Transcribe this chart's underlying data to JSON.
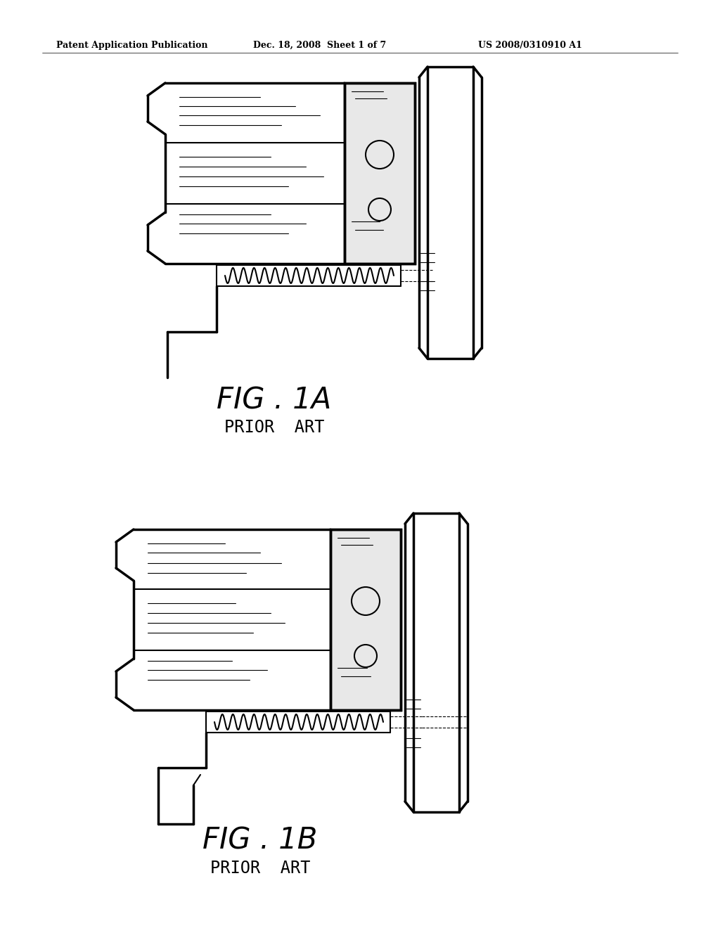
{
  "bg_color": "#ffffff",
  "line_color": "#000000",
  "header_left": "Patent Application Publication",
  "header_mid": "Dec. 18, 2008  Sheet 1 of 7",
  "header_right": "US 2008/0310910 A1",
  "fig1a_label": "FIG . 1A",
  "fig1b_label": "FIG . 1B",
  "prior_art": "PRIOR  ART",
  "lw": 1.5,
  "lw_thick": 2.5,
  "lw_thin": 0.8
}
